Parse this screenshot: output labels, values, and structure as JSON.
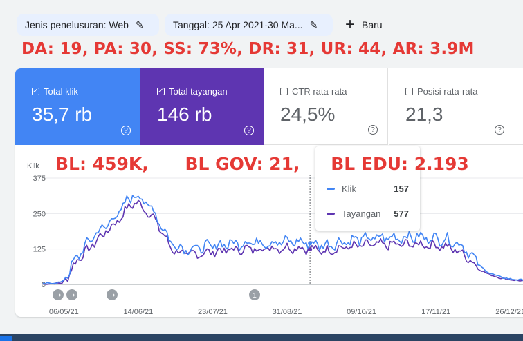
{
  "filters": {
    "search_type": "Jenis penelusuran: Web",
    "date": "Tanggal: 25 Apr 2021-30 Ma...",
    "new_label": "Baru"
  },
  "overlay": {
    "seo_metrics": "DA: 19, PA: 30, SS: 73%, DR: 31, UR: 44, AR: 3.9M",
    "bl": "BL: 459K,",
    "bl_gov": "BL GOV: 21,",
    "bl_edu": "BL EDU: 2.193"
  },
  "cards": {
    "clicks": {
      "label": "Total klik",
      "value": "35,7 rb",
      "checked": true,
      "color": "#4285f4"
    },
    "impressions": {
      "label": "Total tayangan",
      "value": "146 rb",
      "checked": true,
      "color": "#5e35b1"
    },
    "ctr": {
      "label": "CTR rata-rata",
      "value": "24,5%",
      "checked": false
    },
    "position": {
      "label": "Posisi rata-rata",
      "value": "21,3",
      "checked": false
    }
  },
  "tooltip": {
    "rows": [
      {
        "name": "Klik",
        "value": "157"
      },
      {
        "name": "Tayangan",
        "value": "577"
      }
    ]
  },
  "chart_data": {
    "type": "line",
    "ylabel": "Klik",
    "ylim": [
      0,
      375
    ],
    "yticks": [
      "0",
      "125",
      "250",
      "375"
    ],
    "x_ticks": [
      "06/05/21",
      "14/06/21",
      "23/07/21",
      "31/08/21",
      "09/10/21",
      "17/11/21",
      "26/12/21"
    ],
    "x_start": "2021-04-25",
    "x_end": "2022-01-02",
    "annotations": [
      "1"
    ],
    "series": [
      {
        "name": "Klik",
        "color": "#4285f4",
        "anchors": [
          [
            0,
            2
          ],
          [
            10,
            8
          ],
          [
            14,
            45
          ],
          [
            18,
            100
          ],
          [
            22,
            130
          ],
          [
            26,
            170
          ],
          [
            32,
            200
          ],
          [
            38,
            240
          ],
          [
            44,
            290
          ],
          [
            48,
            320
          ],
          [
            52,
            300
          ],
          [
            58,
            260
          ],
          [
            62,
            210
          ],
          [
            66,
            160
          ],
          [
            70,
            135
          ],
          [
            76,
            125
          ],
          [
            84,
            130
          ],
          [
            92,
            140
          ],
          [
            100,
            145
          ],
          [
            110,
            150
          ],
          [
            120,
            148
          ],
          [
            132,
            152
          ],
          [
            140,
            145
          ],
          [
            148,
            138
          ],
          [
            156,
            150
          ],
          [
            164,
            158
          ],
          [
            172,
            163
          ],
          [
            182,
            165
          ],
          [
            192,
            168
          ],
          [
            202,
            165
          ],
          [
            210,
            160
          ],
          [
            216,
            150
          ],
          [
            222,
            125
          ],
          [
            228,
            70
          ],
          [
            234,
            40
          ],
          [
            240,
            25
          ],
          [
            246,
            18
          ],
          [
            252,
            15
          ]
        ],
        "noise": 22
      },
      {
        "name": "Tayangan",
        "color": "#5e35b1",
        "anchors": [
          [
            0,
            1
          ],
          [
            10,
            5
          ],
          [
            14,
            35
          ],
          [
            18,
            90
          ],
          [
            22,
            110
          ],
          [
            26,
            140
          ],
          [
            32,
            180
          ],
          [
            38,
            215
          ],
          [
            44,
            265
          ],
          [
            48,
            290
          ],
          [
            52,
            275
          ],
          [
            58,
            235
          ],
          [
            62,
            190
          ],
          [
            66,
            140
          ],
          [
            70,
            115
          ],
          [
            76,
            105
          ],
          [
            84,
            110
          ],
          [
            92,
            118
          ],
          [
            100,
            122
          ],
          [
            110,
            125
          ],
          [
            120,
            128
          ],
          [
            132,
            130
          ],
          [
            140,
            125
          ],
          [
            148,
            118
          ],
          [
            156,
            128
          ],
          [
            164,
            135
          ],
          [
            172,
            140
          ],
          [
            182,
            140
          ],
          [
            192,
            142
          ],
          [
            202,
            140
          ],
          [
            210,
            135
          ],
          [
            216,
            122
          ],
          [
            222,
            100
          ],
          [
            228,
            55
          ],
          [
            234,
            35
          ],
          [
            240,
            22
          ],
          [
            246,
            16
          ],
          [
            252,
            12
          ]
        ],
        "noise": 18
      }
    ],
    "hover_index": 140,
    "grid": true,
    "legend": "tooltip"
  }
}
